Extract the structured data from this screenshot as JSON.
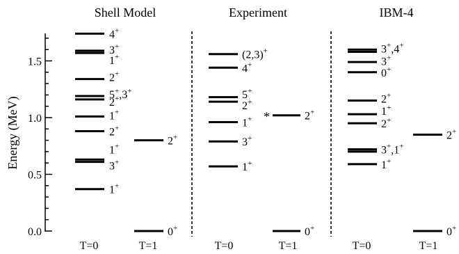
{
  "chart_data": {
    "type": "level-scheme",
    "ylabel": "Energy (MeV)",
    "ylim": [
      0,
      1.75
    ],
    "yticks": [
      "0.0",
      "0.5",
      "1.0",
      "1.5"
    ],
    "grid": false,
    "panels": [
      {
        "title": "Shell Model",
        "columns": [
          {
            "label": "T=0",
            "levels": [
              0.37,
              0.61,
              0.63,
              0.88,
              1.01,
              1.16,
              1.19,
              1.34,
              1.57,
              1.59,
              1.74
            ],
            "spin_labels": [
              {
                "text": "1",
                "sup": "+",
                "energy": 0.37
              },
              {
                "text": "3",
                "sup": "+",
                "energy": 0.58
              },
              {
                "text": "1",
                "sup": "+",
                "energy": 0.72
              },
              {
                "text": "2",
                "sup": "+",
                "energy": 0.88
              },
              {
                "text": "1",
                "sup": "+",
                "energy": 1.02
              },
              {
                "text": "2",
                "sup": "+",
                "energy": 1.14
              },
              {
                "text": "5",
                "sup": "+",
                "text2": ",3",
                "sup2": "+",
                "energy": 1.21
              },
              {
                "text": "2",
                "sup": "+",
                "energy": 1.36
              },
              {
                "text": "1",
                "sup": "+",
                "energy": 1.51
              },
              {
                "text": "3",
                "sup": "+",
                "energy": 1.6
              },
              {
                "text": "4",
                "sup": "+",
                "energy": 1.74
              }
            ]
          },
          {
            "label": "T=1",
            "levels": [
              0.0,
              0.8
            ],
            "spin_labels": [
              {
                "text": "0",
                "sup": "+",
                "energy": 0.0
              },
              {
                "text": "2",
                "sup": "+",
                "energy": 0.8
              }
            ]
          }
        ]
      },
      {
        "title": "Experiment",
        "columns": [
          {
            "label": "T=0",
            "levels": [
              0.57,
              0.79,
              0.96,
              1.14,
              1.18,
              1.44,
              1.56
            ],
            "spin_labels": [
              {
                "text": "1",
                "sup": "+",
                "energy": 0.57
              },
              {
                "text": "3",
                "sup": "+",
                "energy": 0.79
              },
              {
                "text": "1",
                "sup": "+",
                "energy": 0.96
              },
              {
                "text": "2",
                "sup": "+",
                "energy": 1.11
              },
              {
                "text": "5",
                "sup": "+",
                "energy": 1.21
              },
              {
                "text": "4",
                "sup": "+",
                "energy": 1.44
              },
              {
                "text": "(2,3)",
                "sup": "+",
                "energy": 1.56
              }
            ]
          },
          {
            "label": "T=1",
            "levels": [
              0.0,
              1.02
            ],
            "marker": "*",
            "spin_labels": [
              {
                "text": "0",
                "sup": "+",
                "energy": 0.0
              },
              {
                "text": "2",
                "sup": "+",
                "energy": 1.02
              }
            ]
          }
        ]
      },
      {
        "title": "IBM-4",
        "columns": [
          {
            "label": "T=0",
            "levels": [
              0.59,
              0.7,
              0.72,
              0.95,
              1.03,
              1.15,
              1.4,
              1.49,
              1.58,
              1.6
            ],
            "spin_labels": [
              {
                "text": "1",
                "sup": "+",
                "energy": 0.59
              },
              {
                "text": "3",
                "sup": "+",
                "text2": ",1",
                "sup2": "+",
                "energy": 0.72
              },
              {
                "text": "2",
                "sup": "+",
                "energy": 0.95
              },
              {
                "text": "1",
                "sup": "+",
                "energy": 1.06
              },
              {
                "text": "2",
                "sup": "+",
                "energy": 1.17
              },
              {
                "text": "0",
                "sup": "+",
                "energy": 1.4
              },
              {
                "text": "3",
                "sup": "+",
                "energy": 1.5
              },
              {
                "text": "3",
                "sup": "+",
                "text2": ",4",
                "sup2": "+",
                "energy": 1.61
              }
            ]
          },
          {
            "label": "T=1",
            "levels": [
              0.0,
              0.85
            ],
            "spin_labels": [
              {
                "text": "0",
                "sup": "+",
                "energy": 0.0
              },
              {
                "text": "2",
                "sup": "+",
                "energy": 0.85
              }
            ]
          }
        ]
      }
    ]
  }
}
